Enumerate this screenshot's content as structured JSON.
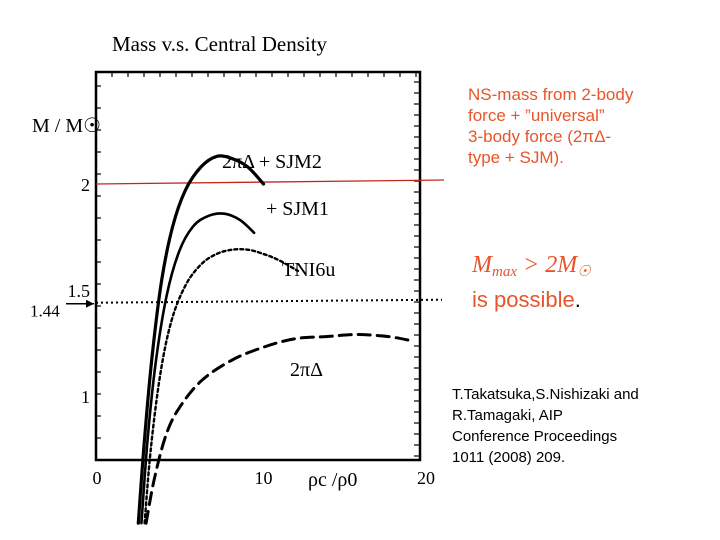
{
  "slide": {
    "title": "Mass v.s. Central Density",
    "note_lines": [
      "NS-mass from 2-body",
      "force + ”universal”",
      "3-body force (2πΔ-",
      "type + SJM)."
    ],
    "claim_formula": {
      "lhs": "M",
      "lhs_sub": "max",
      "op": " > 2M",
      "sun": "☉"
    },
    "claim_text": "is possible",
    "claim_period": ".",
    "citation_lines": [
      "T.Takatsuka,S.Nishizaki and",
      "R.Tamagaki, AIP",
      "Conference Proceedings",
      "1011 (2008)  209."
    ],
    "colors": {
      "accent": "#e8552a",
      "reference_line": "#c0281e",
      "ink": "#000000"
    }
  },
  "chart_data": {
    "type": "line",
    "ylabel": "M / M☉",
    "xlabel": "ρc /ρ0",
    "xlim": [
      0,
      20
    ],
    "ylim": [
      0.4,
      2.7
    ],
    "x_ticks": [
      0,
      10,
      20
    ],
    "y_ticks": [
      1,
      1.5,
      2
    ],
    "series": [
      {
        "name": "2πΔ + SJM2",
        "style": "solid-thick",
        "points": [
          [
            2.0,
            0.4
          ],
          [
            2.4,
            0.8
          ],
          [
            2.9,
            1.2
          ],
          [
            3.5,
            1.55
          ],
          [
            4.2,
            1.8
          ],
          [
            5.0,
            1.97
          ],
          [
            6.0,
            2.08
          ],
          [
            7.0,
            2.13
          ],
          [
            8.0,
            2.12
          ],
          [
            9.0,
            2.08
          ],
          [
            10.0,
            2.0
          ]
        ]
      },
      {
        "name": "+ SJM1",
        "style": "solid",
        "points": [
          [
            2.2,
            0.4
          ],
          [
            2.6,
            0.8
          ],
          [
            3.1,
            1.15
          ],
          [
            3.8,
            1.47
          ],
          [
            4.6,
            1.68
          ],
          [
            5.5,
            1.8
          ],
          [
            6.5,
            1.85
          ],
          [
            7.5,
            1.86
          ],
          [
            8.5,
            1.83
          ],
          [
            9.4,
            1.77
          ]
        ]
      },
      {
        "name": "TNI6u",
        "style": "dotted",
        "points": [
          [
            2.4,
            0.4
          ],
          [
            2.8,
            0.75
          ],
          [
            3.4,
            1.1
          ],
          [
            4.1,
            1.35
          ],
          [
            5.0,
            1.52
          ],
          [
            6.0,
            1.62
          ],
          [
            7.0,
            1.67
          ],
          [
            8.0,
            1.69
          ],
          [
            9.0,
            1.69
          ],
          [
            10.0,
            1.67
          ],
          [
            11.0,
            1.64
          ],
          [
            12.2,
            1.59
          ]
        ]
      },
      {
        "name": "2πΔ",
        "style": "dashed",
        "points": [
          [
            2.5,
            0.4
          ],
          [
            3.0,
            0.6
          ],
          [
            3.7,
            0.8
          ],
          [
            4.5,
            0.93
          ],
          [
            6.0,
            1.07
          ],
          [
            8.0,
            1.17
          ],
          [
            10.0,
            1.23
          ],
          [
            12.0,
            1.27
          ],
          [
            14.0,
            1.28
          ],
          [
            16.0,
            1.29
          ],
          [
            18.0,
            1.28
          ],
          [
            19.5,
            1.26
          ]
        ]
      }
    ],
    "reference_lines": [
      {
        "value": 2.0,
        "style": "solid-red"
      },
      {
        "value": 1.44,
        "style": "dotted",
        "label": "1.44"
      }
    ]
  }
}
